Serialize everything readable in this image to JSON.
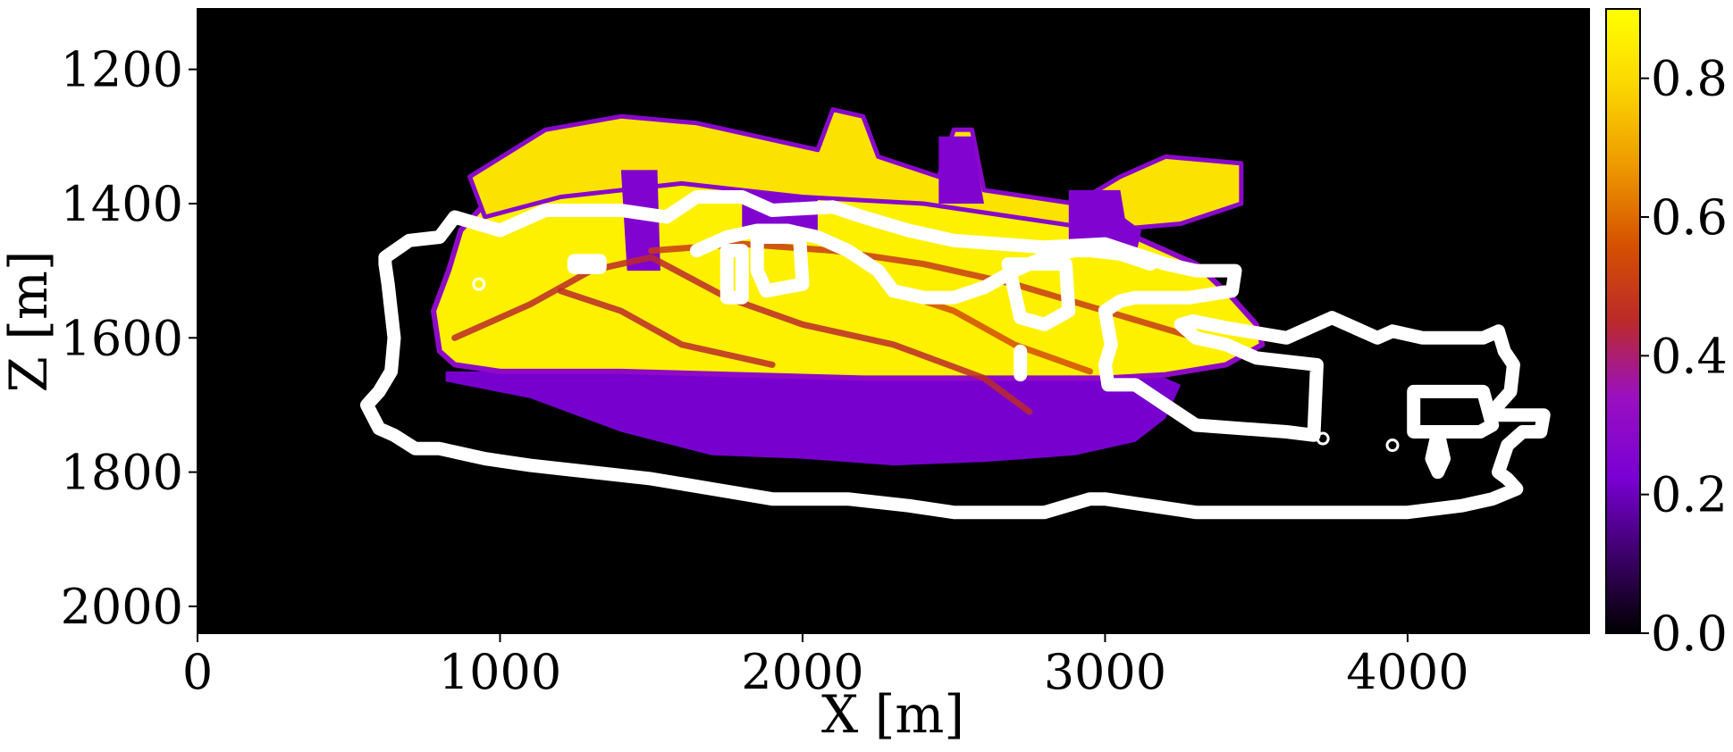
{
  "chart_data": {
    "type": "heatmap",
    "title": "",
    "xlabel": "X [m]",
    "ylabel": "Z [m]",
    "xlim": [
      0,
      4600
    ],
    "ylim": [
      2040,
      1110
    ],
    "y_inverted": true,
    "xticks": [
      0,
      1000,
      2000,
      3000,
      4000
    ],
    "xtick_labels": [
      "0",
      "1000",
      "2000",
      "3000",
      "4000"
    ],
    "yticks": [
      1200,
      1400,
      1600,
      1800,
      2000
    ],
    "ytick_labels": [
      "1200",
      "1400",
      "1600",
      "1800",
      "2000"
    ],
    "colormap": "gnuplot",
    "background_color": "#000000",
    "colorbar": {
      "range": [
        0,
        0.9
      ],
      "ticks": [
        0.0,
        0.2,
        0.4,
        0.6,
        0.8
      ],
      "tick_labels": [
        "0.0",
        "0.2",
        "0.4",
        "0.6",
        "0.8"
      ],
      "placement": "right"
    },
    "field": {
      "purple_body": {
        "value": 0.22,
        "outline": [
          [
            820,
            1665
          ],
          [
            1100,
            1690
          ],
          [
            1400,
            1740
          ],
          [
            1700,
            1775
          ],
          [
            2000,
            1780
          ],
          [
            2300,
            1790
          ],
          [
            2600,
            1785
          ],
          [
            2900,
            1775
          ],
          [
            3100,
            1755
          ],
          [
            3200,
            1720
          ],
          [
            3250,
            1670
          ],
          [
            3100,
            1640
          ],
          [
            2800,
            1630
          ],
          [
            2400,
            1635
          ],
          [
            2000,
            1640
          ],
          [
            1600,
            1645
          ],
          [
            1200,
            1650
          ],
          [
            820,
            1650
          ]
        ]
      },
      "hot_body": {
        "value": 0.86,
        "outline": [
          [
            800,
            1620
          ],
          [
            780,
            1560
          ],
          [
            830,
            1500
          ],
          [
            870,
            1440
          ],
          [
            950,
            1400
          ],
          [
            1050,
            1380
          ],
          [
            1200,
            1360
          ],
          [
            1400,
            1350
          ],
          [
            1600,
            1340
          ],
          [
            1800,
            1360
          ],
          [
            2000,
            1365
          ],
          [
            2200,
            1380
          ],
          [
            2400,
            1390
          ],
          [
            2600,
            1400
          ],
          [
            2850,
            1420
          ],
          [
            3100,
            1450
          ],
          [
            3300,
            1490
          ],
          [
            3420,
            1540
          ],
          [
            3500,
            1580
          ],
          [
            3520,
            1610
          ],
          [
            3400,
            1640
          ],
          [
            3200,
            1655
          ],
          [
            3000,
            1660
          ],
          [
            2600,
            1660
          ],
          [
            2200,
            1660
          ],
          [
            1800,
            1655
          ],
          [
            1400,
            1650
          ],
          [
            1000,
            1650
          ],
          [
            850,
            1640
          ]
        ]
      },
      "upper_fringe": {
        "value": 0.82,
        "outline": [
          [
            900,
            1360
          ],
          [
            1150,
            1290
          ],
          [
            1400,
            1270
          ],
          [
            1650,
            1280
          ],
          [
            1850,
            1300
          ],
          [
            2050,
            1320
          ],
          [
            2100,
            1260
          ],
          [
            2200,
            1270
          ],
          [
            2250,
            1330
          ],
          [
            2450,
            1360
          ],
          [
            2500,
            1290
          ],
          [
            2560,
            1290
          ],
          [
            2600,
            1380
          ],
          [
            2900,
            1400
          ],
          [
            3050,
            1360
          ],
          [
            3200,
            1330
          ],
          [
            3450,
            1340
          ],
          [
            3450,
            1400
          ],
          [
            3250,
            1430
          ],
          [
            3000,
            1440
          ],
          [
            2700,
            1420
          ],
          [
            2400,
            1400
          ],
          [
            2000,
            1390
          ],
          [
            1600,
            1370
          ],
          [
            1200,
            1390
          ],
          [
            950,
            1420
          ]
        ]
      },
      "dark_streaks": [
        {
          "value": 0.45,
          "points": [
            [
              850,
              1600
            ],
            [
              1100,
              1550
            ],
            [
              1300,
              1500
            ],
            [
              1500,
              1480
            ],
            [
              1750,
              1540
            ],
            [
              2000,
              1580
            ],
            [
              2300,
              1610
            ],
            [
              2600,
              1660
            ],
            [
              2750,
              1710
            ]
          ]
        },
        {
          "value": 0.5,
          "points": [
            [
              1500,
              1470
            ],
            [
              1800,
              1460
            ],
            [
              2100,
              1470
            ],
            [
              2400,
              1490
            ],
            [
              2700,
              1520
            ],
            [
              3000,
              1560
            ],
            [
              3300,
              1600
            ]
          ]
        },
        {
          "value": 0.45,
          "points": [
            [
              1200,
              1530
            ],
            [
              1400,
              1560
            ],
            [
              1600,
              1610
            ],
            [
              1900,
              1640
            ]
          ]
        },
        {
          "value": 0.55,
          "points": [
            [
              2300,
              1530
            ],
            [
              2500,
              1560
            ],
            [
              2700,
              1610
            ],
            [
              2950,
              1650
            ]
          ]
        }
      ],
      "purple_pockets": [
        {
          "value": 0.25,
          "outline": [
            [
              1400,
              1350
            ],
            [
              1520,
              1350
            ],
            [
              1530,
              1500
            ],
            [
              1420,
              1500
            ]
          ]
        },
        {
          "value": 0.25,
          "outline": [
            [
              1800,
              1380
            ],
            [
              2050,
              1390
            ],
            [
              2050,
              1440
            ],
            [
              1800,
              1440
            ]
          ]
        },
        {
          "value": 0.25,
          "outline": [
            [
              2450,
              1300
            ],
            [
              2560,
              1300
            ],
            [
              2600,
              1400
            ],
            [
              2450,
              1400
            ]
          ]
        },
        {
          "value": 0.25,
          "outline": [
            [
              2880,
              1380
            ],
            [
              3050,
              1380
            ],
            [
              3080,
              1460
            ],
            [
              2880,
              1460
            ]
          ]
        },
        {
          "value": 0.25,
          "outline": [
            [
              3060,
              1420
            ],
            [
              3120,
              1440
            ],
            [
              3100,
              1480
            ],
            [
              3050,
              1470
            ]
          ]
        }
      ]
    },
    "contours": {
      "color": "#ffffff",
      "lines": [
        {
          "closed": true,
          "points": [
            [
              620,
              1480
            ],
            [
              700,
              1455
            ],
            [
              800,
              1450
            ],
            [
              850,
              1420
            ],
            [
              1000,
              1440
            ],
            [
              1100,
              1420
            ],
            [
              1150,
              1410
            ],
            [
              1400,
              1410
            ],
            [
              1550,
              1420
            ],
            [
              1650,
              1390
            ],
            [
              1800,
              1390
            ],
            [
              1900,
              1410
            ],
            [
              2100,
              1405
            ],
            [
              2200,
              1420
            ],
            [
              2350,
              1440
            ],
            [
              2500,
              1455
            ],
            [
              2800,
              1465
            ],
            [
              3000,
              1460
            ],
            [
              3200,
              1490
            ],
            [
              3300,
              1500
            ],
            [
              3430,
              1500
            ],
            [
              3420,
              1530
            ],
            [
              3280,
              1540
            ],
            [
              3100,
              1540
            ],
            [
              3050,
              1545
            ],
            [
              3000,
              1560
            ],
            [
              3020,
              1610
            ],
            [
              3000,
              1640
            ],
            [
              3010,
              1670
            ],
            [
              3100,
              1670
            ],
            [
              3200,
              1700
            ],
            [
              3300,
              1730
            ],
            [
              3450,
              1735
            ],
            [
              3600,
              1740
            ],
            [
              3690,
              1745
            ],
            [
              3700,
              1640
            ],
            [
              3500,
              1630
            ],
            [
              3400,
              1610
            ],
            [
              3300,
              1600
            ],
            [
              3250,
              1580
            ],
            [
              3290,
              1575
            ],
            [
              3400,
              1585
            ],
            [
              3600,
              1600
            ],
            [
              3750,
              1570
            ],
            [
              3900,
              1600
            ],
            [
              3950,
              1590
            ],
            [
              4050,
              1600
            ],
            [
              4250,
              1600
            ],
            [
              4300,
              1590
            ],
            [
              4320,
              1620
            ],
            [
              4350,
              1640
            ],
            [
              4340,
              1680
            ],
            [
              4300,
              1700
            ],
            [
              4290,
              1715
            ],
            [
              4450,
              1715
            ],
            [
              4440,
              1740
            ],
            [
              4380,
              1740
            ],
            [
              4330,
              1760
            ],
            [
              4300,
              1800
            ],
            [
              4330,
              1810
            ],
            [
              4360,
              1825
            ],
            [
              4280,
              1840
            ],
            [
              4180,
              1850
            ],
            [
              4000,
              1860
            ],
            [
              3800,
              1860
            ],
            [
              3500,
              1860
            ],
            [
              3300,
              1860
            ],
            [
              3150,
              1850
            ],
            [
              3000,
              1840
            ],
            [
              2950,
              1840
            ],
            [
              2800,
              1860
            ],
            [
              2500,
              1860
            ],
            [
              2350,
              1850
            ],
            [
              2150,
              1840
            ],
            [
              1900,
              1840
            ],
            [
              1700,
              1825
            ],
            [
              1500,
              1810
            ],
            [
              1300,
              1800
            ],
            [
              1100,
              1790
            ],
            [
              950,
              1780
            ],
            [
              800,
              1765
            ],
            [
              720,
              1765
            ],
            [
              650,
              1745
            ],
            [
              600,
              1735
            ],
            [
              560,
              1700
            ],
            [
              600,
              1680
            ],
            [
              640,
              1650
            ],
            [
              650,
              1600
            ],
            [
              640,
              1560
            ],
            [
              630,
              1520
            ],
            [
              620,
              1490
            ]
          ]
        },
        {
          "closed": false,
          "points": [
            [
              1650,
              1470
            ],
            [
              1750,
              1450
            ],
            [
              1850,
              1440
            ],
            [
              1950,
              1440
            ],
            [
              2050,
              1450
            ],
            [
              2150,
              1470
            ],
            [
              2250,
              1500
            ],
            [
              2300,
              1530
            ],
            [
              2400,
              1540
            ],
            [
              2500,
              1540
            ],
            [
              2600,
              1525
            ],
            [
              2700,
              1500
            ],
            [
              2800,
              1480
            ],
            [
              2900,
              1470
            ],
            [
              2950,
              1470
            ],
            [
              3050,
              1475
            ],
            [
              3150,
              1490
            ]
          ]
        },
        {
          "closed": true,
          "points": [
            [
              1750,
              1470
            ],
            [
              1800,
              1470
            ],
            [
              1800,
              1540
            ],
            [
              1750,
              1540
            ]
          ]
        },
        {
          "closed": true,
          "points": [
            [
              1850,
              1450
            ],
            [
              1990,
              1450
            ],
            [
              2000,
              1520
            ],
            [
              1880,
              1530
            ],
            [
              1850,
              1500
            ]
          ]
        },
        {
          "closed": true,
          "points": [
            [
              2680,
              1490
            ],
            [
              2870,
              1490
            ],
            [
              2880,
              1560
            ],
            [
              2800,
              1580
            ],
            [
              2720,
              1570
            ]
          ]
        },
        {
          "closed": false,
          "points": [
            [
              2720,
              1620
            ],
            [
              2720,
              1655
            ]
          ]
        },
        {
          "closed": true,
          "points": [
            [
              4020,
              1680
            ],
            [
              4250,
              1680
            ],
            [
              4280,
              1730
            ],
            [
              4240,
              1740
            ],
            [
              4020,
              1740
            ]
          ]
        },
        {
          "closed": true,
          "points": [
            [
              4080,
              1780
            ],
            [
              4100,
              1740
            ],
            [
              4120,
              1780
            ],
            [
              4100,
              1800
            ]
          ]
        },
        {
          "closed": true,
          "points": [
            [
              1245,
              1485
            ],
            [
              1330,
              1485
            ],
            [
              1330,
              1495
            ],
            [
              1245,
              1495
            ]
          ]
        }
      ],
      "small_circles": [
        [
          930,
          1520
        ],
        [
          3720,
          1750
        ],
        [
          3950,
          1760
        ]
      ]
    }
  }
}
